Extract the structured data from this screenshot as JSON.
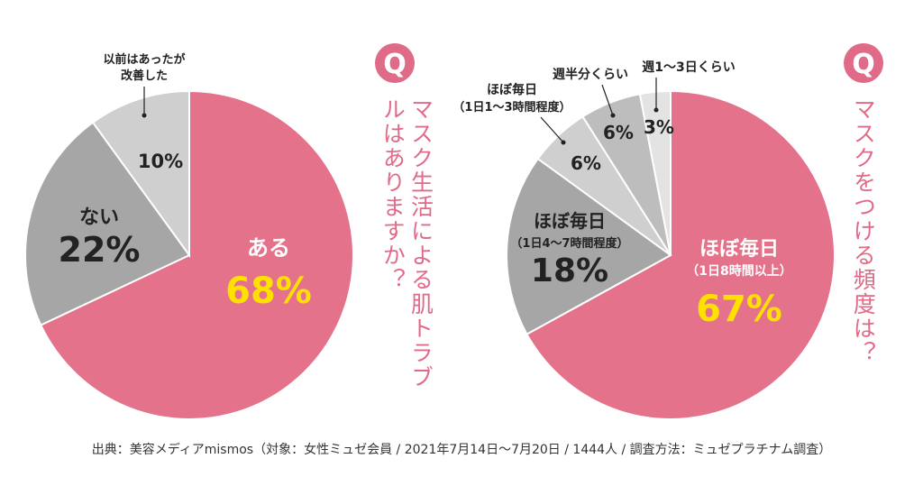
{
  "colors": {
    "pink": "#e4728b",
    "gray_dark": "#a6a6a6",
    "gray_mid": "#bdbdbd",
    "gray_light": "#cfcfcf",
    "gray_lightest": "#e3e3e3",
    "accent_yellow": "#ffe100",
    "q_badge": "#e06b88",
    "text_dark": "#222222"
  },
  "badge_label": "Q",
  "chart_data": [
    {
      "type": "pie",
      "question": "マスク生活による肌トラブルはありますか？",
      "start_angle_deg": 0,
      "direction": "clockwise",
      "slices": [
        {
          "label": "ある",
          "sublabel": "",
          "value": 68,
          "value_label": "68%",
          "color": "#e4728b"
        },
        {
          "label": "ない",
          "sublabel": "",
          "value": 22,
          "value_label": "22%",
          "color": "#a6a6a6"
        },
        {
          "label": "以前はあったが改善した",
          "sublabel": "",
          "value": 10,
          "value_label": "10%",
          "color": "#cfcfcf"
        }
      ]
    },
    {
      "type": "pie",
      "question": "マスクをつける頻度は？",
      "start_angle_deg": 0,
      "direction": "clockwise",
      "slices": [
        {
          "label": "ほぼ毎日",
          "sublabel": "（1日8時間以上）",
          "value": 67,
          "value_label": "67%",
          "color": "#e4728b"
        },
        {
          "label": "ほぼ毎日",
          "sublabel": "（1日4〜7時間程度）",
          "value": 18,
          "value_label": "18%",
          "color": "#a6a6a6"
        },
        {
          "label": "ほぼ毎日",
          "sublabel": "（1日1〜3時間程度）",
          "value": 6,
          "value_label": "6%",
          "color": "#cfcfcf"
        },
        {
          "label": "週半分くらい",
          "sublabel": "",
          "value": 6,
          "value_label": "6%",
          "color": "#bdbdbd"
        },
        {
          "label": "週1〜3日くらい",
          "sublabel": "",
          "value": 3,
          "value_label": "3%",
          "color": "#e3e3e3"
        }
      ]
    }
  ],
  "source_note": "出典：美容メディアmismos（対象：女性ミュゼ会員 / 2021年7月14日〜7月20日 / 1444人 / 調査方法：ミュゼプラチナム調査）"
}
